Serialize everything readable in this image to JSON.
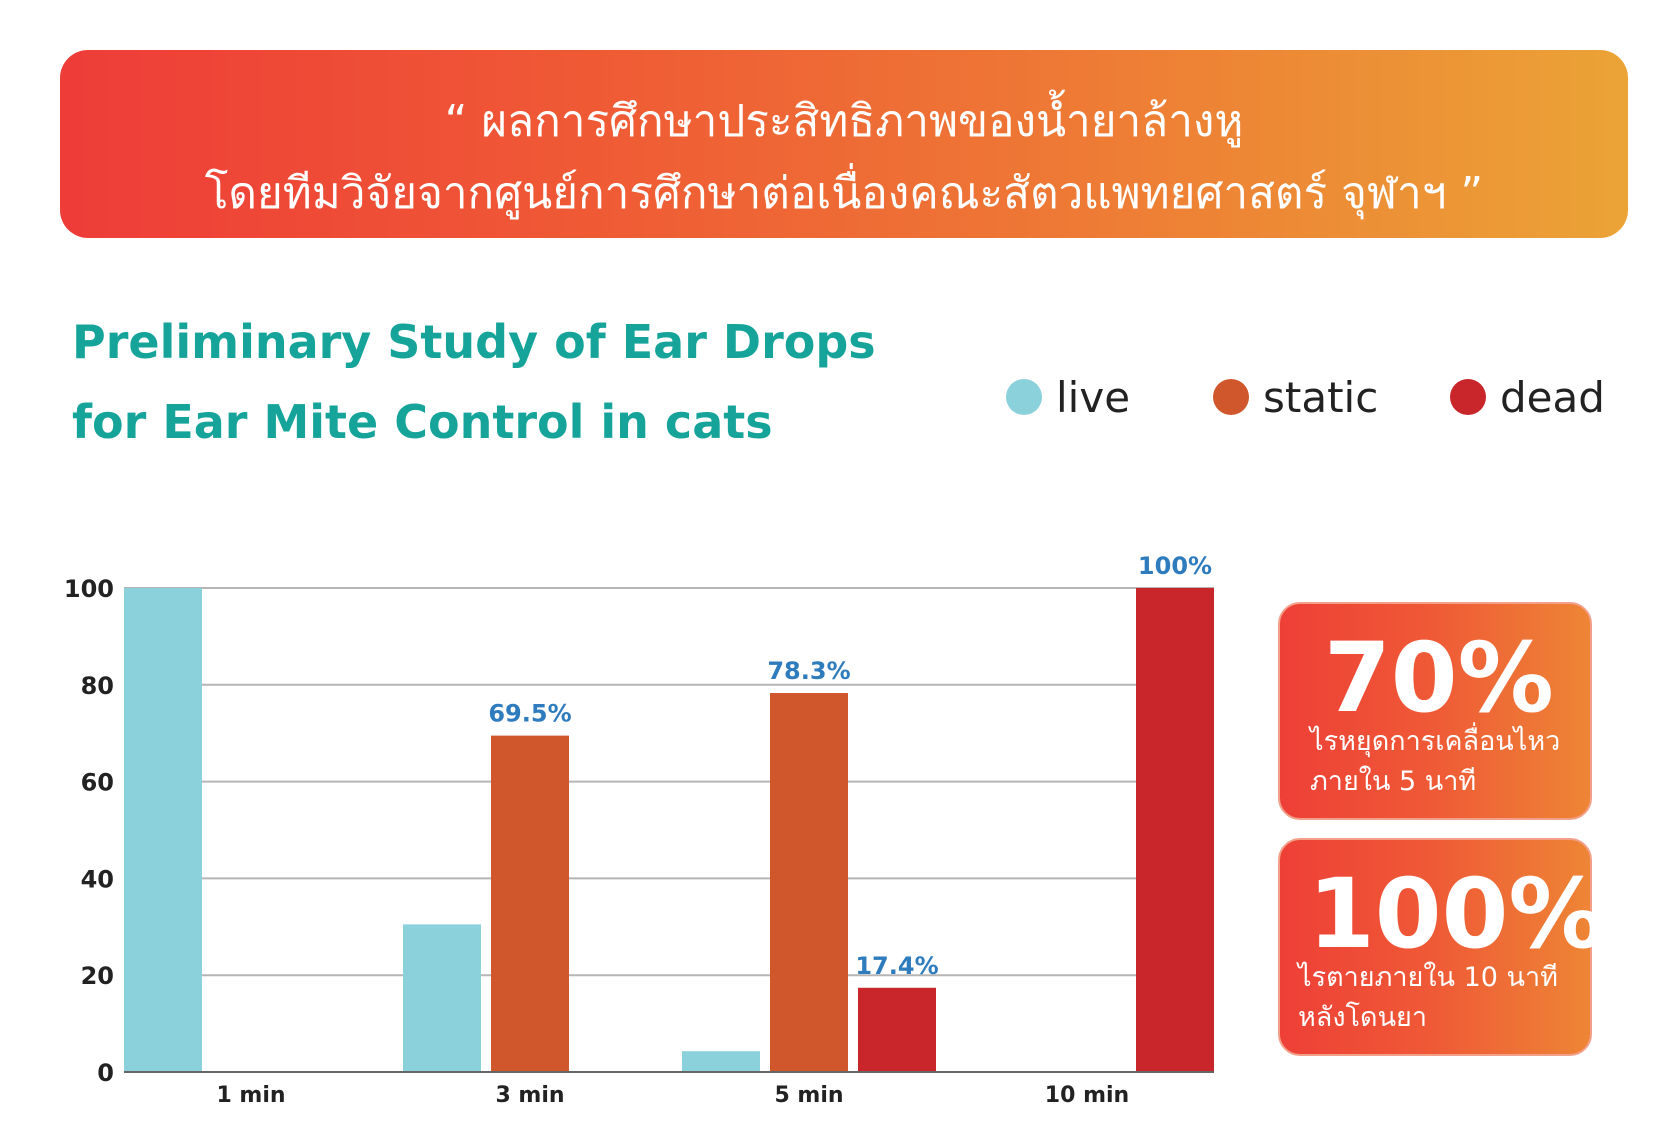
{
  "banner": {
    "line1": "“ ผลการศึกษาประสิทธิภาพของน้ำยาล้างหู",
    "line2": "โดยทีมวิจัยจากศูนย์การศึกษาต่อเนื่องคณะสัตวแพทยศาสตร์ จุฬาฯ ”"
  },
  "title": {
    "line1": "Preliminary Study of Ear Drops",
    "line2": "for Ear Mite Control in cats"
  },
  "legend": [
    {
      "label": "live",
      "color": "#8ad1db"
    },
    {
      "label": "static",
      "color": "#d0562b"
    },
    {
      "label": "dead",
      "color": "#c8262a"
    }
  ],
  "chart_data": {
    "type": "bar",
    "categories": [
      "1 min",
      "3 min",
      "5 min",
      "10 min"
    ],
    "series": [
      {
        "name": "live",
        "color": "#8ad1db",
        "values": [
          100,
          30.5,
          4.3,
          0
        ]
      },
      {
        "name": "static",
        "color": "#d0562b",
        "values": [
          0,
          69.5,
          78.3,
          0
        ]
      },
      {
        "name": "dead",
        "color": "#c8262a",
        "values": [
          0,
          0,
          17.4,
          100
        ]
      }
    ],
    "data_labels": [
      {
        "series": "static",
        "category": "3 min",
        "text": "69.5%"
      },
      {
        "series": "static",
        "category": "5 min",
        "text": "78.3%"
      },
      {
        "series": "dead",
        "category": "5 min",
        "text": "17.4%"
      },
      {
        "series": "dead",
        "category": "10 min",
        "text": "100%"
      }
    ],
    "label_color": "#2e7bbd",
    "yticks": [
      0,
      20,
      40,
      60,
      80,
      100
    ],
    "ylim": [
      0,
      100
    ],
    "grid": true,
    "xlabel": "",
    "ylabel": ""
  },
  "cards": [
    {
      "big": "70%",
      "sub1": "ไรหยุดการเคลื่อนไหว",
      "sub2": "ภายใน 5 นาที"
    },
    {
      "big": "100%",
      "sub1": "ไรตายภายใน 10 นาที",
      "sub2": "หลังโดนยา"
    }
  ]
}
